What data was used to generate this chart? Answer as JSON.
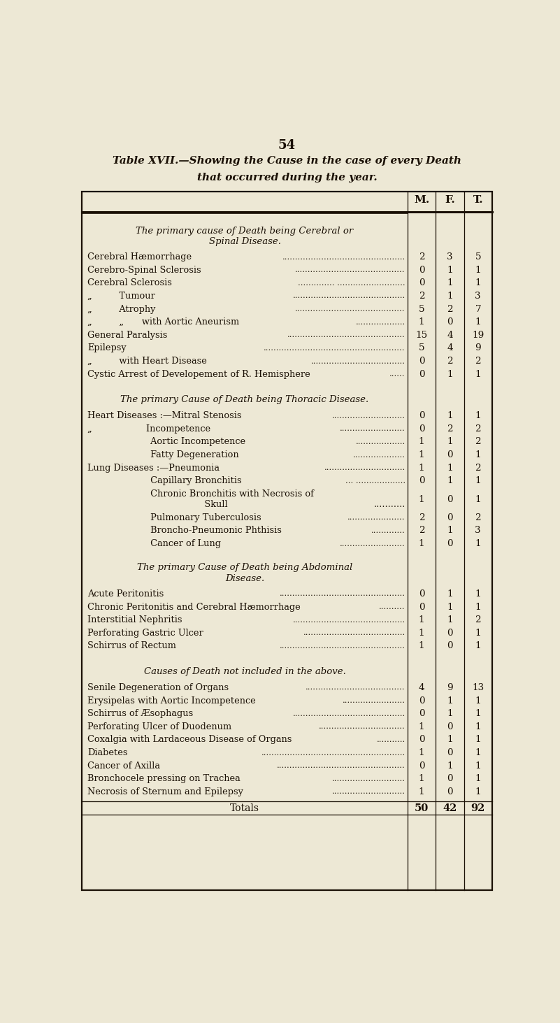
{
  "page_number": "54",
  "title_line1": "Table XVII.—Showing the Cause in the case of every Death",
  "title_line2": "that occurred during the year.",
  "bg": "#ede8d5",
  "ink": "#1a1005",
  "col_headers": [
    "M.",
    "F.",
    "T."
  ],
  "sections": [
    {
      "header": [
        "The primary cause of Death being Cerebral or",
        "Spinal Disease."
      ],
      "rows": [
        {
          "label": "Cerebral Hæmorrhage",
          "dots": "...............................................",
          "indent": 0,
          "m": "2",
          "f": "3",
          "t": "5"
        },
        {
          "label": "Cerebro-Spinal Sclerosis",
          "dots": "..........................................",
          "indent": 0,
          "m": "0",
          "f": "1",
          "t": "1"
        },
        {
          "label": "Cerebral Sclerosis",
          "dots": ".............. ..........................",
          "indent": 0,
          "m": "0",
          "f": "1",
          "t": "1"
        },
        {
          "label": "„   Tumour",
          "dots": "...........................................",
          "indent": 1,
          "m": "2",
          "f": "1",
          "t": "3"
        },
        {
          "label": "„   Atrophy",
          "dots": "..........................................",
          "indent": 1,
          "m": "5",
          "f": "2",
          "t": "7"
        },
        {
          "label": "„   „  with Aortic Aneurism",
          "dots": "...................",
          "indent": 2,
          "m": "1",
          "f": "0",
          "t": "1"
        },
        {
          "label": "General Paralysis",
          "dots": ".............................................",
          "indent": 0,
          "m": "15",
          "f": "4",
          "t": "19"
        },
        {
          "label": "Epilepsy",
          "dots": "......................................................",
          "indent": 0,
          "m": "5",
          "f": "4",
          "t": "9"
        },
        {
          "label": "„   with Heart Disease",
          "dots": "....................................",
          "indent": 1,
          "m": "0",
          "f": "2",
          "t": "2"
        },
        {
          "label": "Cystic Arrest of Developement of R. Hemisphere",
          "dots": "......",
          "indent": 0,
          "m": "0",
          "f": "1",
          "t": "1"
        }
      ]
    },
    {
      "header": [
        "The primary Cause of Death being Thoracic Disease."
      ],
      "rows": [
        {
          "label": "Heart Diseases :—Mitral Stenosis",
          "dots": "............................",
          "indent": 0,
          "m": "0",
          "f": "1",
          "t": "1"
        },
        {
          "label": "„      Incompetence",
          "dots": ".........................",
          "indent": 1,
          "m": "0",
          "f": "2",
          "t": "2"
        },
        {
          "label": "       Aortic Incompetence",
          "dots": "...................",
          "indent": 1,
          "m": "1",
          "f": "1",
          "t": "2"
        },
        {
          "label": "       Fatty Degeneration",
          "dots": "....................",
          "indent": 1,
          "m": "1",
          "f": "0",
          "t": "1"
        },
        {
          "label": "Lung Diseases :—Pneumonia",
          "dots": "...............................",
          "indent": 0,
          "m": "1",
          "f": "1",
          "t": "2"
        },
        {
          "label": "       Capillary Bronchitis",
          "dots": "... ...................",
          "indent": 1,
          "m": "0",
          "f": "1",
          "t": "1"
        },
        {
          "label": "       Chronic Bronchitis with Necrosis of",
          "label2": "             Skull",
          "dots": "...........",
          "indent": 1,
          "m": "1",
          "f": "0",
          "t": "1"
        },
        {
          "label": "       Pulmonary Tuberculosis",
          "dots": "......................",
          "indent": 1,
          "m": "2",
          "f": "0",
          "t": "2"
        },
        {
          "label": "       Broncho-Pneumonic Phthisis",
          "dots": ".............",
          "indent": 1,
          "m": "2",
          "f": "1",
          "t": "3"
        },
        {
          "label": "       Cancer of Lung",
          "dots": ".........................",
          "indent": 1,
          "m": "1",
          "f": "0",
          "t": "1"
        }
      ]
    },
    {
      "header": [
        "The primary Cause of Death being Abdominal",
        "Disease."
      ],
      "rows": [
        {
          "label": "Acute Peritonitis",
          "dots": "................................................",
          "indent": 0,
          "m": "0",
          "f": "1",
          "t": "1"
        },
        {
          "label": "Chronic Peritonitis and Cerebral Hæmorrhage",
          "dots": "..........",
          "indent": 0,
          "m": "0",
          "f": "1",
          "t": "1"
        },
        {
          "label": "Interstitial Nephritis",
          "dots": "...........................................",
          "indent": 0,
          "m": "1",
          "f": "1",
          "t": "2"
        },
        {
          "label": "Perforating Gastric Ulcer",
          "dots": ".......................................",
          "indent": 0,
          "m": "1",
          "f": "0",
          "t": "1"
        },
        {
          "label": "Schirrus of Rectum",
          "dots": "................................................",
          "indent": 0,
          "m": "1",
          "f": "0",
          "t": "1"
        }
      ]
    },
    {
      "header": [
        "Causes of Death not included in the above."
      ],
      "rows": [
        {
          "label": "Senile Degeneration of Organs",
          "dots": "......................................",
          "indent": 0,
          "m": "4",
          "f": "9",
          "t": "13"
        },
        {
          "label": "Erysipelas with Aortic Incompetence",
          "dots": "........................",
          "indent": 0,
          "m": "0",
          "f": "1",
          "t": "1"
        },
        {
          "label": "Schirrus of Æsophagus",
          "dots": "...........................................",
          "indent": 0,
          "m": "0",
          "f": "1",
          "t": "1"
        },
        {
          "label": "Perforating Ulcer of Duodenum",
          "dots": ".................................",
          "indent": 0,
          "m": "1",
          "f": "0",
          "t": "1"
        },
        {
          "label": "Coxalgia with Lardaceous Disease of Organs",
          "dots": "...........",
          "indent": 0,
          "m": "0",
          "f": "1",
          "t": "1"
        },
        {
          "label": "Diabetes",
          "dots": ".......................................................",
          "indent": 0,
          "m": "1",
          "f": "0",
          "t": "1"
        },
        {
          "label": "Cancer of Axilla",
          "dots": ".................................................",
          "indent": 0,
          "m": "0",
          "f": "1",
          "t": "1"
        },
        {
          "label": "Bronchocele pressing on Trachea",
          "dots": "............................",
          "indent": 0,
          "m": "1",
          "f": "0",
          "t": "1"
        },
        {
          "label": "Necrosis of Sternum and Epilepsy",
          "dots": "............................",
          "indent": 0,
          "m": "1",
          "f": "0",
          "t": "1"
        }
      ]
    }
  ],
  "totals_label": "Totals",
  "totals": [
    "50",
    "42",
    "92"
  ]
}
